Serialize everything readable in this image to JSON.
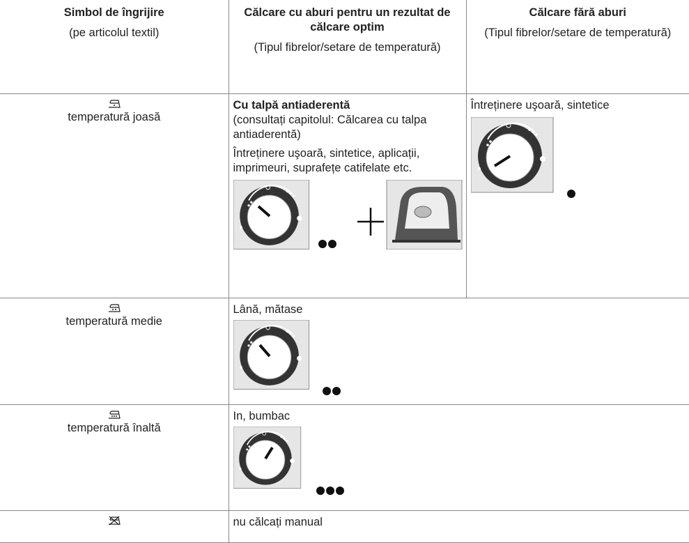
{
  "table": {
    "header": [
      {
        "title": "Simbol de îngrijire",
        "subtitle": "(pe articolul textil)"
      },
      {
        "title": "Călcare cu aburi pentru un rezultat de călcare optim",
        "subtitle": "(Tipul fibrelor/setare de temperatură)"
      },
      {
        "title": "Călcare fără aburi",
        "subtitle": "(Tipul fibrelor/setare de temperatură)"
      }
    ],
    "rows": [
      {
        "symbol": "temperatură joasă",
        "steam": {
          "title": "Cu talpă antiaderentă",
          "note": "(consultați capitolul: Călcarea cu talpa antiaderentă)",
          "text": "Întreținere uşoară, sintetice, aplicații, imprimeuri, suprafețe catifelate etc."
        },
        "no_steam": "Întreținere uşoară, sintetice"
      },
      {
        "symbol": "temperatură medie",
        "fabric": "Lână, mătase"
      },
      {
        "symbol": "temperatură înaltă",
        "fabric": "In, bumbac"
      },
      {
        "fabric": "nu călcați manual"
      }
    ]
  }
}
